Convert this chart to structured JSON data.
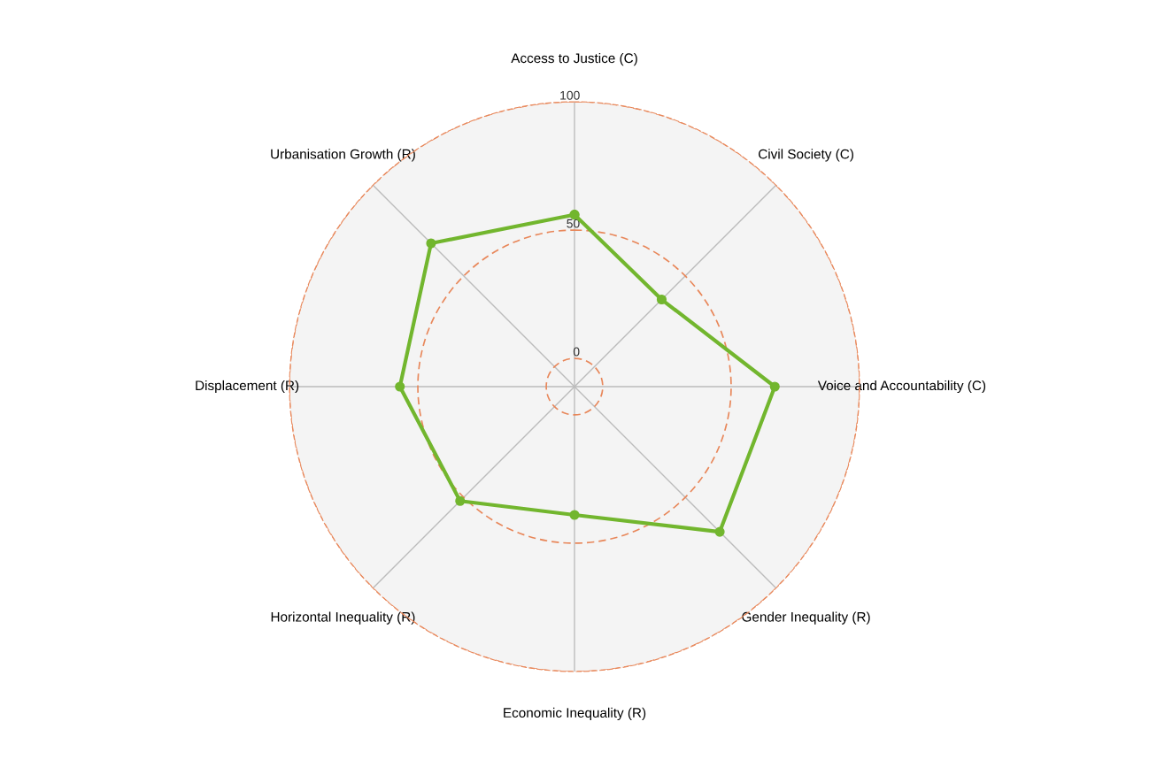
{
  "chart_data": {
    "type": "radar",
    "categories": [
      "Access to Justice (C)",
      "Civil Society (C)",
      "Voice and Accountability (C)",
      "Gender Inequality (R)",
      "Economic Inequality (R)",
      "Horizontal Inequality (R)",
      "Displacement (R)",
      "Urbanisation Growth (R)"
    ],
    "series": [
      {
        "color": "#72b62e",
        "values": [
          56,
          37,
          67,
          69,
          39,
          52,
          57,
          68
        ]
      }
    ],
    "ylim": [
      -11,
      100
    ],
    "yticks": [
      0,
      50,
      100
    ],
    "grid": true,
    "marker": "circle",
    "line_style": "solid",
    "legend": false
  }
}
